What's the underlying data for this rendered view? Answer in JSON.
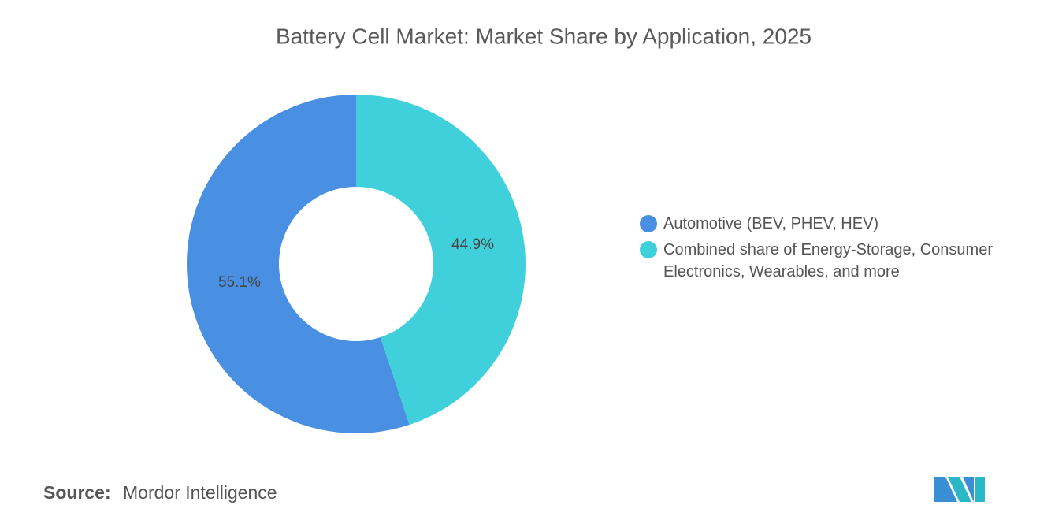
{
  "chart_data": {
    "type": "pie",
    "donut": true,
    "title": "Battery Cell Market: Market Share by Application, 2025",
    "categories": [
      "Automotive (BEV, PHEV, HEV)",
      "Combined share of Energy-Storage, Consumer Electronics, Wearables, and more"
    ],
    "values": [
      55.1,
      44.9
    ],
    "value_labels": [
      "55.1%",
      "44.9%"
    ],
    "colors": [
      "#4a90e2",
      "#40d0dc"
    ]
  },
  "source": {
    "label": "Source:",
    "name": "Mordor Intelligence"
  }
}
